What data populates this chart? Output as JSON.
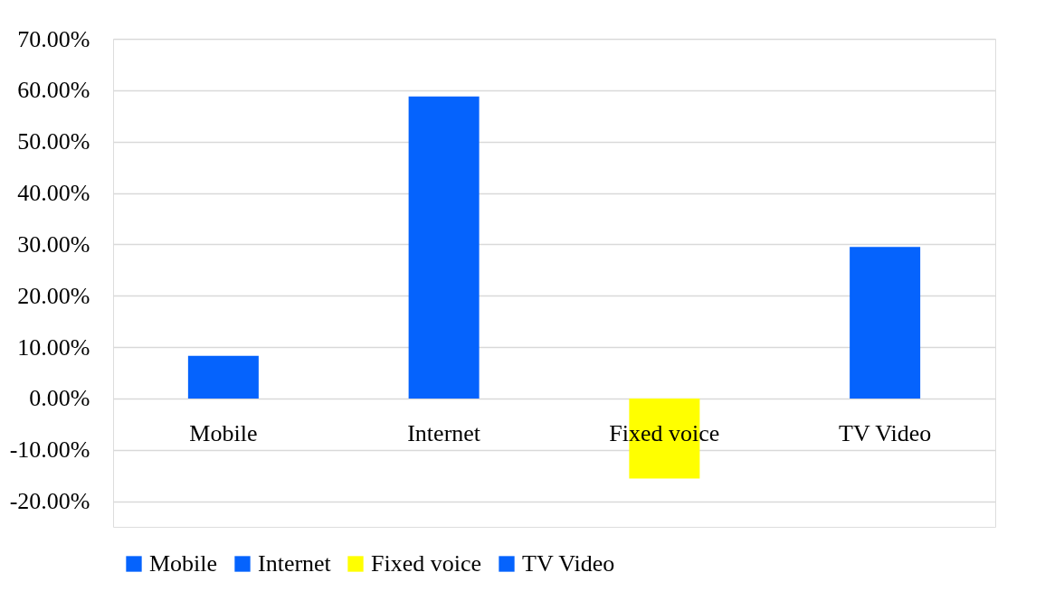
{
  "chart_data": {
    "type": "bar",
    "categories": [
      "Mobile",
      "Internet",
      "Fixed voice",
      "TV Video"
    ],
    "series": [
      {
        "name": "Mobile",
        "color": "#0563fd",
        "values": [
          8.3,
          null,
          null,
          null
        ]
      },
      {
        "name": "Internet",
        "color": "#0563fd",
        "values": [
          null,
          58.8,
          null,
          null
        ]
      },
      {
        "name": "Fixed voice",
        "color": "#ffff00",
        "values": [
          null,
          null,
          -15.6,
          null
        ]
      },
      {
        "name": "TV Video",
        "color": "#0563fd",
        "values": [
          null,
          null,
          null,
          29.5
        ]
      }
    ],
    "ylim": [
      -25,
      70
    ],
    "yticks": [
      {
        "value": -20,
        "label": "-20.00%"
      },
      {
        "value": -10,
        "label": "-10.00%"
      },
      {
        "value": 0,
        "label": "0.00%"
      },
      {
        "value": 10,
        "label": "10.00%"
      },
      {
        "value": 20,
        "label": "20.00%"
      },
      {
        "value": 30,
        "label": "30.00%"
      },
      {
        "value": 40,
        "label": "40.00%"
      },
      {
        "value": 50,
        "label": "50.00%"
      },
      {
        "value": 60,
        "label": "60.00%"
      },
      {
        "value": 70,
        "label": "70.00%"
      }
    ],
    "grid": "y",
    "legend": "bottom"
  }
}
